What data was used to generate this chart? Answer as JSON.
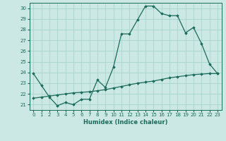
{
  "xlabel": "Humidex (Indice chaleur)",
  "xlim": [
    -0.5,
    23.5
  ],
  "ylim": [
    20.5,
    30.5
  ],
  "yticks": [
    21,
    22,
    23,
    24,
    25,
    26,
    27,
    28,
    29,
    30
  ],
  "xticks": [
    0,
    1,
    2,
    3,
    4,
    5,
    6,
    7,
    8,
    9,
    10,
    11,
    12,
    13,
    14,
    15,
    16,
    17,
    18,
    19,
    20,
    21,
    22,
    23
  ],
  "bg_color": "#cce8e4",
  "grid_color": "#a8d4ce",
  "line_color": "#1a6b5a",
  "line1_x": [
    0,
    1,
    2,
    3,
    4,
    5,
    6,
    7,
    8,
    9,
    10,
    11,
    12,
    13,
    14,
    15,
    16,
    17,
    18,
    19,
    20,
    21,
    22,
    23
  ],
  "line1_y": [
    23.9,
    22.8,
    21.7,
    20.9,
    21.2,
    21.0,
    21.5,
    21.5,
    23.3,
    22.6,
    24.5,
    27.6,
    27.6,
    28.9,
    30.2,
    30.2,
    29.5,
    29.3,
    29.3,
    27.7,
    28.2,
    26.7,
    24.8,
    23.9
  ],
  "line2_x": [
    0,
    1,
    2,
    3,
    4,
    5,
    6,
    7,
    8,
    9,
    10,
    11,
    12,
    13,
    14,
    15,
    16,
    17,
    18,
    19,
    20,
    21,
    22,
    23
  ],
  "line2_y": [
    21.6,
    21.7,
    21.8,
    21.9,
    22.0,
    22.1,
    22.15,
    22.2,
    22.3,
    22.4,
    22.55,
    22.7,
    22.85,
    23.0,
    23.1,
    23.2,
    23.35,
    23.5,
    23.6,
    23.7,
    23.8,
    23.85,
    23.9,
    23.9
  ]
}
